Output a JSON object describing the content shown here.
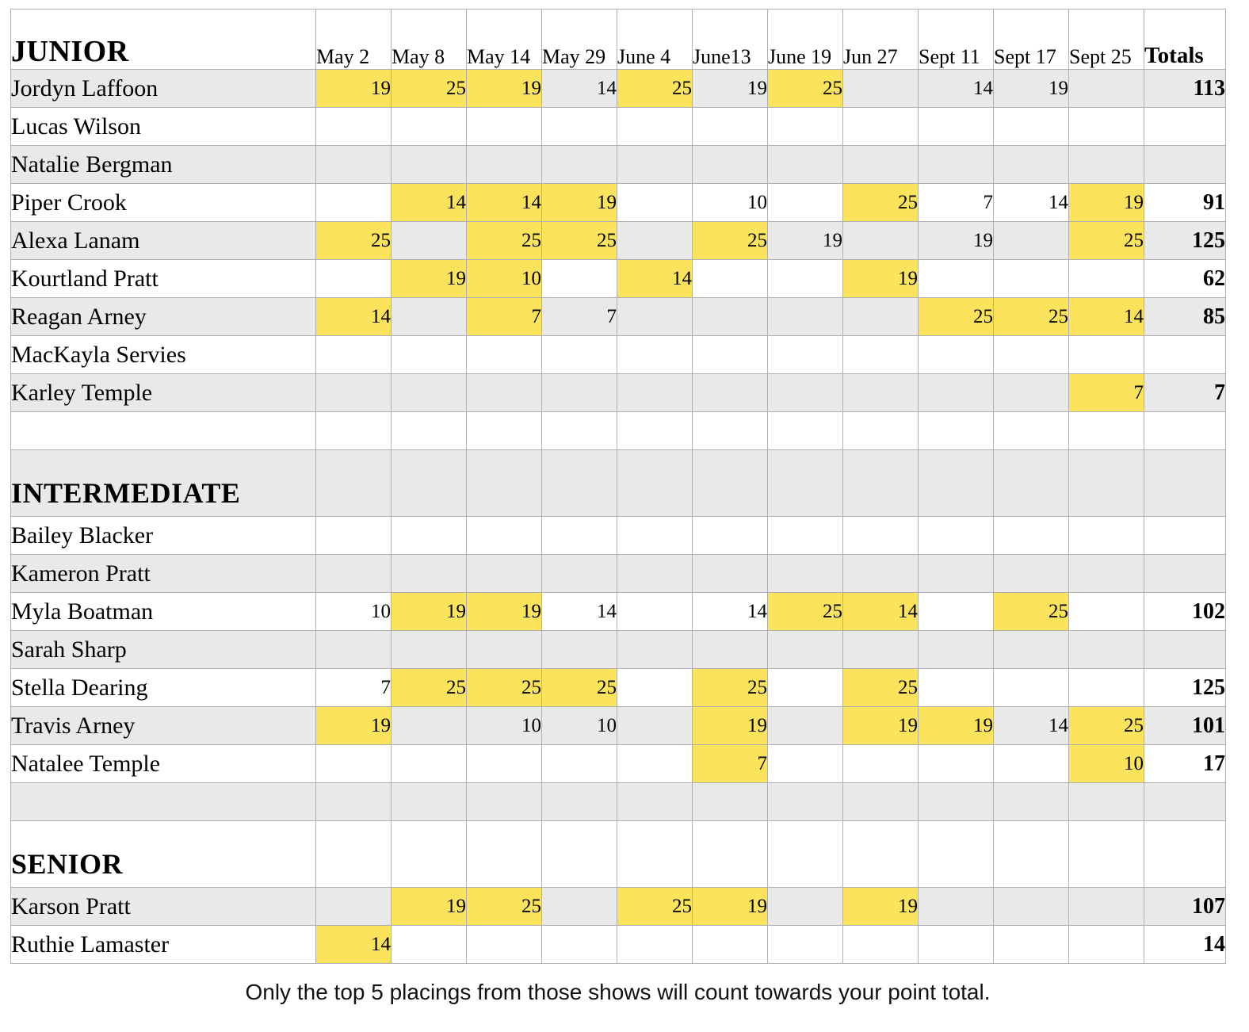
{
  "header": {
    "section_label": "JUNIOR",
    "dates": [
      "May 2",
      "May 8",
      "May 14",
      "May 29",
      "June 4",
      "June13",
      "June 19",
      "Jun 27",
      "Sept 11",
      "Sept 17",
      "Sept 25"
    ],
    "totals_label": "Totals"
  },
  "highlight_color": "#fbe45c",
  "shaded_row_color": "#e9e9e9",
  "rows": [
    {
      "type": "player",
      "name": "Jordyn Laffoon",
      "cells": [
        {
          "v": "19",
          "hl": true
        },
        {
          "v": "25",
          "hl": true
        },
        {
          "v": "19",
          "hl": true
        },
        {
          "v": "14"
        },
        {
          "v": "25",
          "hl": true
        },
        {
          "v": "19"
        },
        {
          "v": "25",
          "hl": true
        },
        null,
        {
          "v": "14"
        },
        {
          "v": "19"
        },
        null
      ],
      "total": "113"
    },
    {
      "type": "player",
      "name": "Lucas Wilson",
      "cells": [
        null,
        null,
        null,
        null,
        null,
        null,
        null,
        null,
        null,
        null,
        null
      ],
      "total": ""
    },
    {
      "type": "player",
      "name": "Natalie Bergman",
      "cells": [
        null,
        null,
        null,
        null,
        null,
        null,
        null,
        null,
        null,
        null,
        null
      ],
      "total": ""
    },
    {
      "type": "player",
      "name": "Piper Crook",
      "cells": [
        null,
        {
          "v": "14",
          "hl": true
        },
        {
          "v": "14",
          "hl": true
        },
        {
          "v": "19",
          "hl": true
        },
        null,
        {
          "v": "10"
        },
        null,
        {
          "v": "25",
          "hl": true
        },
        {
          "v": "7"
        },
        {
          "v": "14"
        },
        {
          "v": "19",
          "hl": true
        }
      ],
      "total": "91"
    },
    {
      "type": "player",
      "name": "Alexa Lanam",
      "cells": [
        {
          "v": "25",
          "hl": true
        },
        null,
        {
          "v": "25",
          "hl": true
        },
        {
          "v": "25",
          "hl": true
        },
        null,
        {
          "v": "25",
          "hl": true
        },
        {
          "v": "19"
        },
        null,
        {
          "v": "19"
        },
        null,
        {
          "v": "25",
          "hl": true
        }
      ],
      "total": "125"
    },
    {
      "type": "player",
      "name": "Kourtland Pratt",
      "cells": [
        null,
        {
          "v": "19",
          "hl": true
        },
        {
          "v": "10",
          "hl": true
        },
        null,
        {
          "v": "14",
          "hl": true
        },
        null,
        null,
        {
          "v": "19",
          "hl": true
        },
        null,
        null,
        null
      ],
      "total": "62"
    },
    {
      "type": "player",
      "name": "Reagan Arney",
      "cells": [
        {
          "v": "14",
          "hl": true
        },
        null,
        {
          "v": "7",
          "hl": true
        },
        {
          "v": "7"
        },
        null,
        null,
        null,
        null,
        {
          "v": "25",
          "hl": true
        },
        {
          "v": "25",
          "hl": true
        },
        {
          "v": "14",
          "hl": true
        }
      ],
      "total": "85"
    },
    {
      "type": "player",
      "name": "MacKayla Servies",
      "cells": [
        null,
        null,
        null,
        null,
        null,
        null,
        null,
        null,
        null,
        null,
        null
      ],
      "total": ""
    },
    {
      "type": "player",
      "name": "Karley Temple",
      "cells": [
        null,
        null,
        null,
        null,
        null,
        null,
        null,
        null,
        null,
        null,
        {
          "v": "7",
          "hl": true
        }
      ],
      "total": "7"
    },
    {
      "type": "spacer"
    },
    {
      "type": "section",
      "label": "INTERMEDIATE"
    },
    {
      "type": "player",
      "name": "Bailey Blacker",
      "cells": [
        null,
        null,
        null,
        null,
        null,
        null,
        null,
        null,
        null,
        null,
        null
      ],
      "total": ""
    },
    {
      "type": "player",
      "name": "Kameron Pratt",
      "cells": [
        null,
        null,
        null,
        null,
        null,
        null,
        null,
        null,
        null,
        null,
        null
      ],
      "total": ""
    },
    {
      "type": "player",
      "name": "Myla Boatman",
      "cells": [
        {
          "v": "10"
        },
        {
          "v": "19",
          "hl": true
        },
        {
          "v": "19",
          "hl": true
        },
        {
          "v": "14"
        },
        null,
        {
          "v": "14"
        },
        {
          "v": "25",
          "hl": true
        },
        {
          "v": "14",
          "hl": true
        },
        null,
        {
          "v": "25",
          "hl": true
        },
        null
      ],
      "total": "102"
    },
    {
      "type": "player",
      "name": "Sarah Sharp",
      "cells": [
        null,
        null,
        null,
        null,
        null,
        null,
        null,
        null,
        null,
        null,
        null
      ],
      "total": ""
    },
    {
      "type": "player",
      "name": "Stella Dearing",
      "cells": [
        {
          "v": "7"
        },
        {
          "v": "25",
          "hl": true
        },
        {
          "v": "25",
          "hl": true
        },
        {
          "v": "25",
          "hl": true
        },
        null,
        {
          "v": "25",
          "hl": true
        },
        null,
        {
          "v": "25",
          "hl": true
        },
        null,
        null,
        null
      ],
      "total": "125"
    },
    {
      "type": "player",
      "name": "Travis Arney",
      "cells": [
        {
          "v": "19",
          "hl": true
        },
        null,
        {
          "v": "10"
        },
        {
          "v": "10"
        },
        null,
        {
          "v": "19",
          "hl": true
        },
        null,
        {
          "v": "19",
          "hl": true
        },
        {
          "v": "19",
          "hl": true
        },
        {
          "v": "14"
        },
        {
          "v": "25",
          "hl": true
        }
      ],
      "total": "101"
    },
    {
      "type": "player",
      "name": "Natalee Temple",
      "cells": [
        null,
        null,
        null,
        null,
        null,
        {
          "v": "7",
          "hl": true
        },
        null,
        null,
        null,
        null,
        {
          "v": "10",
          "hl": true
        }
      ],
      "total": "17"
    },
    {
      "type": "spacer"
    },
    {
      "type": "section",
      "label": "SENIOR"
    },
    {
      "type": "player",
      "name": "Karson Pratt",
      "cells": [
        null,
        {
          "v": "19",
          "hl": true
        },
        {
          "v": "25",
          "hl": true
        },
        null,
        {
          "v": "25",
          "hl": true
        },
        {
          "v": "19",
          "hl": true
        },
        null,
        {
          "v": "19",
          "hl": true
        },
        null,
        null,
        null
      ],
      "total": "107"
    },
    {
      "type": "player",
      "name": "Ruthie Lamaster",
      "cells": [
        {
          "v": "14",
          "hl": true
        },
        null,
        null,
        null,
        null,
        null,
        null,
        null,
        null,
        null,
        null
      ],
      "total": "14"
    }
  ],
  "footer_note": "Only the top 5 placings from those shows will count towards your point total."
}
